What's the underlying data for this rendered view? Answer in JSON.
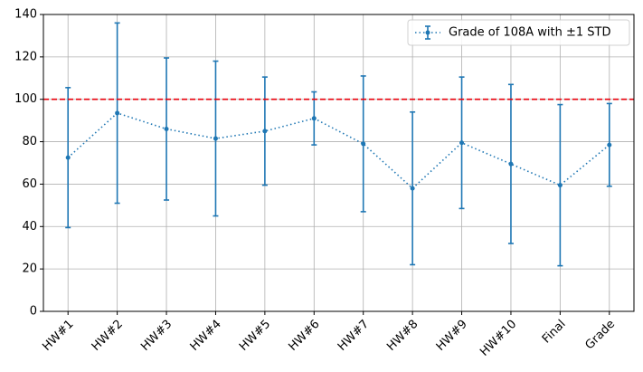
{
  "chart_data": {
    "type": "errorbar",
    "categories": [
      "HW#1",
      "HW#2",
      "HW#3",
      "HW#4",
      "HW#5",
      "HW#6",
      "HW#7",
      "HW#8",
      "HW#9",
      "HW#10",
      "Final",
      "Grade"
    ],
    "series": [
      {
        "name": "Grade of 108A with ±1 STD",
        "color": "#1f77b4",
        "values": [
          72.5,
          93.5,
          86,
          81.5,
          85,
          91,
          79,
          58,
          79.5,
          69.5,
          59.5,
          78.5
        ],
        "errors": [
          33,
          42.5,
          33.5,
          36.5,
          25.5,
          12.5,
          32,
          36,
          31,
          37.5,
          38,
          19.5
        ]
      }
    ],
    "reference_line": {
      "value": 100,
      "color": "#e8000b"
    },
    "ylim": [
      0,
      140
    ],
    "yticks": [
      0,
      20,
      40,
      60,
      80,
      100,
      120,
      140
    ],
    "grid": true,
    "legend": "upper right"
  }
}
